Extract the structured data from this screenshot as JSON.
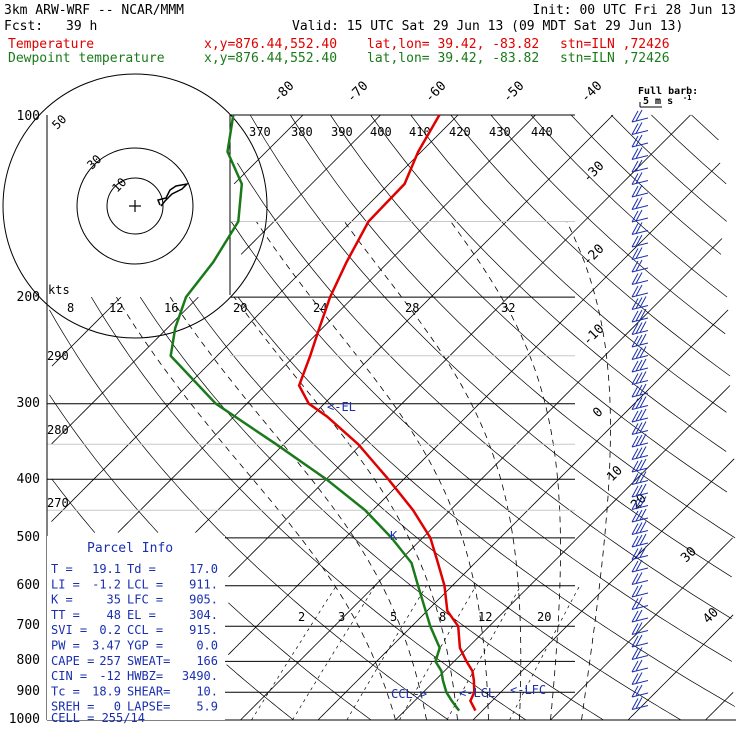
{
  "header": {
    "model": "3km ARW-WRF -- NCAR/MMM",
    "init": "Init: 00 UTC Fri 28 Jun 13",
    "fcst_label": "Fcst:",
    "fcst_value": "39 h",
    "valid": "Valid: 15 UTC Sat 29 Jun 13 (09 MDT Sat 29 Jun 13)",
    "line_temp": {
      "name": "Temperature",
      "xy": "x,y=876.44,552.40",
      "latlon": "lat,lon= 39.42, -83.82",
      "stn": "stn=ILN ,72426"
    },
    "line_dew": {
      "name": "Dewpoint temperature",
      "xy": "x,y=876.44,552.40",
      "latlon": "lat,lon= 39.42, -83.82",
      "stn": "stn=ILN ,72426"
    }
  },
  "colors": {
    "temperature": "#e00000",
    "dewpoint": "#1a7a1a",
    "info": "#1a2fb0",
    "frame": "#000000"
  },
  "barb_key": {
    "line1": "Full barb:",
    "line2": "5 m s",
    "superscript": "-1"
  },
  "chart_data": {
    "type": "skew-t",
    "y_scale": "log-pressure",
    "pressure_ticks": [
      "100",
      "200",
      "300",
      "400",
      "500",
      "600",
      "700",
      "800",
      "900",
      "1000"
    ],
    "isotherm_labels": [
      "-80",
      "-70",
      "-60",
      "-50",
      "-40",
      "-30",
      "-20",
      "-10",
      "0",
      "10",
      "20",
      "30",
      "40"
    ],
    "theta_labels": [
      "370",
      "380",
      "390",
      "400",
      "410",
      "420",
      "430",
      "440"
    ],
    "theta_e_labels": [
      "290",
      "280",
      "270"
    ],
    "mixing_ratio_labels": [
      "2",
      "3",
      "5",
      "8",
      "12",
      "20"
    ],
    "wind_speed_labels": [
      "8",
      "12",
      "16",
      "20",
      "24",
      "28",
      "32"
    ],
    "hodograph": {
      "unit_label": "kts",
      "ring_labels": [
        "50",
        "30",
        "10"
      ]
    },
    "markers": {
      "el": "<-EL",
      "ccl": "CCL->",
      "lcl": "<-LCL",
      "lfc": "<-LFC",
      "kfc": "K"
    },
    "series": [
      {
        "name": "Temperature",
        "color": "#e00000",
        "points": [
          {
            "p": 965,
            "t": 19.1
          },
          {
            "p": 930,
            "t": 17.2
          },
          {
            "p": 900,
            "t": 16.6
          },
          {
            "p": 860,
            "t": 15.0
          },
          {
            "p": 830,
            "t": 13.6
          },
          {
            "p": 800,
            "t": 11.6
          },
          {
            "p": 760,
            "t": 9.0
          },
          {
            "p": 700,
            "t": 6.0
          },
          {
            "p": 660,
            "t": 2.6
          },
          {
            "p": 600,
            "t": -1.0
          },
          {
            "p": 550,
            "t": -4.8
          },
          {
            "p": 500,
            "t": -9.0
          },
          {
            "p": 450,
            "t": -14.8
          },
          {
            "p": 400,
            "t": -22.0
          },
          {
            "p": 350,
            "t": -30.4
          },
          {
            "p": 315,
            "t": -38.0
          },
          {
            "p": 300,
            "t": -42.0
          },
          {
            "p": 280,
            "t": -45.6
          },
          {
            "p": 250,
            "t": -48.0
          },
          {
            "p": 225,
            "t": -50.4
          },
          {
            "p": 200,
            "t": -53.0
          },
          {
            "p": 175,
            "t": -55.4
          },
          {
            "p": 150,
            "t": -57.8
          },
          {
            "p": 130,
            "t": -58.0
          },
          {
            "p": 115,
            "t": -60.4
          },
          {
            "p": 100,
            "t": -62.4
          }
        ]
      },
      {
        "name": "Dewpoint temperature",
        "color": "#1a7a1a",
        "points": [
          {
            "p": 965,
            "t": 17.0
          },
          {
            "p": 930,
            "t": 14.8
          },
          {
            "p": 900,
            "t": 13.0
          },
          {
            "p": 860,
            "t": 11.0
          },
          {
            "p": 830,
            "t": 9.6
          },
          {
            "p": 800,
            "t": 7.6
          },
          {
            "p": 760,
            "t": 6.4
          },
          {
            "p": 700,
            "t": 2.4
          },
          {
            "p": 600,
            "t": -4.4
          },
          {
            "p": 550,
            "t": -8.2
          },
          {
            "p": 500,
            "t": -14.0
          },
          {
            "p": 450,
            "t": -21.0
          },
          {
            "p": 400,
            "t": -30.0
          },
          {
            "p": 350,
            "t": -41.0
          },
          {
            "p": 300,
            "t": -54.0
          },
          {
            "p": 250,
            "t": -66.0
          },
          {
            "p": 225,
            "t": -69.0
          },
          {
            "p": 200,
            "t": -71.6
          },
          {
            "p": 175,
            "t": -72.6
          },
          {
            "p": 150,
            "t": -74.6
          },
          {
            "p": 130,
            "t": -79.0
          },
          {
            "p": 115,
            "t": -85.0
          },
          {
            "p": 100,
            "t": -89.0
          }
        ]
      }
    ]
  },
  "parcel": {
    "title": "Parcel Info",
    "rows": [
      [
        "T  =",
        "19.1",
        "Td =",
        "17.0"
      ],
      [
        "LI =",
        "-1.2",
        "LCL =",
        "911."
      ],
      [
        "K  =",
        "35",
        "LFC =",
        "905."
      ],
      [
        "TT =",
        "48",
        "EL =",
        "304."
      ],
      [
        "SVI =",
        "0.2",
        "CCL =",
        "915."
      ],
      [
        "PW =",
        "3.47",
        "YGP =",
        "0.0"
      ],
      [
        "CAPE =",
        "257",
        "SWEAT=",
        "166"
      ],
      [
        "CIN =",
        "-12",
        "HWBZ=",
        "3490."
      ],
      [
        "Tc =",
        "18.9",
        "SHEAR=",
        "10."
      ],
      [
        "SREH =",
        "0",
        "LAPSE=",
        "5.9"
      ]
    ],
    "cell": "CELL = 255/14"
  }
}
